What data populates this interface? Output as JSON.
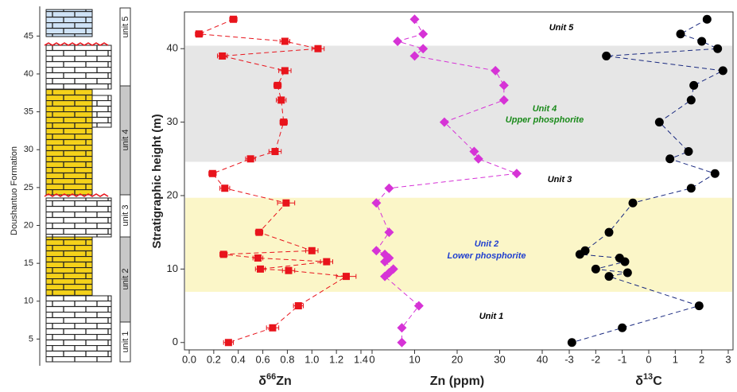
{
  "chart_data": [
    {
      "type": "scatter",
      "xlabel": [
        "δ",
        "66",
        "Zn"
      ],
      "color": "#e8141c",
      "marker": "square",
      "ylabel": "Stratigraphic height (m)",
      "ylim": [
        -1,
        45
      ],
      "yticks": [
        0,
        10,
        20,
        30,
        40
      ],
      "xlim": [
        0,
        1.4
      ],
      "xticks": [
        {
          "value": 0,
          "label": "0.0"
        },
        0.2,
        0.4,
        0.6,
        0.8,
        {
          "value": 1,
          "label": "1.0"
        },
        1.2,
        1.4
      ],
      "bands": [
        {
          "range": [
            24.6,
            40.4
          ],
          "color": "#e6e6e6"
        },
        {
          "range": [
            6.9,
            19.7
          ],
          "color": "#fbf6c8"
        }
      ],
      "annotations": [
        {
          "text": "Unit 5",
          "color": "#000000"
        },
        {
          "text": "Unit 4",
          "color": "#1a8a1a"
        },
        {
          "text": "Upper phosphorite",
          "color": "#1a8a1a"
        },
        {
          "text": "Unit 3",
          "color": "#000000"
        },
        {
          "text": "Unit 2",
          "color": "#1f3fd0"
        },
        {
          "text": "Lower phosphorite",
          "color": "#1f3fd0"
        },
        {
          "text": "Unit 1",
          "color": "#000000"
        }
      ],
      "y": [
        44,
        42,
        41,
        40,
        39,
        37,
        35,
        33,
        30,
        26,
        25,
        23,
        21,
        19,
        15,
        12.5,
        12,
        11.5,
        11,
        10,
        9.8,
        9,
        5,
        2,
        0
      ],
      "x": [
        0.36,
        0.08,
        0.78,
        1.05,
        0.27,
        0.78,
        0.72,
        0.75,
        0.77,
        0.7,
        0.5,
        0.19,
        0.29,
        0.79,
        0.57,
        1.0,
        0.28,
        0.56,
        1.12,
        0.58,
        0.81,
        1.28,
        0.89,
        0.68,
        0.32
      ],
      "xerr": [
        0.03,
        0.03,
        0.04,
        0.05,
        0.04,
        0.05,
        0.03,
        0.04,
        0.03,
        0.05,
        0.04,
        0.03,
        0.04,
        0.07,
        0.03,
        0.05,
        0.03,
        0.04,
        0.05,
        0.04,
        0.05,
        0.08,
        0.04,
        0.05,
        0.04
      ]
    },
    {
      "type": "scatter",
      "xlabel": [
        "Zn (ppm)"
      ],
      "color": "#d633d6",
      "marker": "diamond",
      "xlim": [
        0,
        40
      ],
      "xticks": [
        0,
        10,
        20,
        30,
        40
      ],
      "y": [
        44,
        42,
        41,
        40,
        39,
        37,
        35,
        33,
        30,
        26,
        25,
        23,
        21,
        19,
        15,
        12.5,
        12,
        11.5,
        11,
        10,
        9.5,
        9,
        5,
        2,
        0
      ],
      "x": [
        10,
        12,
        6,
        12,
        10,
        29,
        31,
        31,
        17,
        24,
        25,
        34,
        4,
        1,
        4,
        1,
        3,
        4,
        3,
        5,
        4,
        3,
        11,
        7,
        7
      ]
    },
    {
      "type": "scatter",
      "xlabel": [
        "δ",
        "13",
        "C"
      ],
      "color": "#000000",
      "line_color": "#1a2a80",
      "marker": "circle",
      "xlim": [
        -3,
        3
      ],
      "xticks": [
        -3,
        -2,
        -1,
        0,
        1,
        2,
        3
      ],
      "y": [
        44,
        42,
        41,
        40,
        39,
        37,
        35,
        33,
        30,
        26,
        25,
        23,
        21,
        19,
        15,
        12.5,
        12,
        11.5,
        11,
        10,
        9.5,
        9,
        5,
        2,
        0
      ],
      "x": [
        2.2,
        1.2,
        2.0,
        2.6,
        -1.6,
        2.8,
        1.7,
        1.6,
        0.4,
        1.5,
        0.8,
        2.5,
        1.6,
        -0.6,
        -1.5,
        -2.4,
        -2.6,
        -1.1,
        -0.9,
        -2.0,
        -0.8,
        -1.5,
        1.9,
        -1.0,
        -2.9
      ]
    }
  ],
  "strat_column": {
    "title": "Doushantuo Formation",
    "ylim": [
      2,
      48.5
    ],
    "ticks": [
      5,
      10,
      15,
      20,
      25,
      30,
      35,
      40,
      45
    ],
    "units": [
      "unit 5",
      "unit 4",
      "unit 3",
      "unit 2",
      "unit 1"
    ]
  }
}
